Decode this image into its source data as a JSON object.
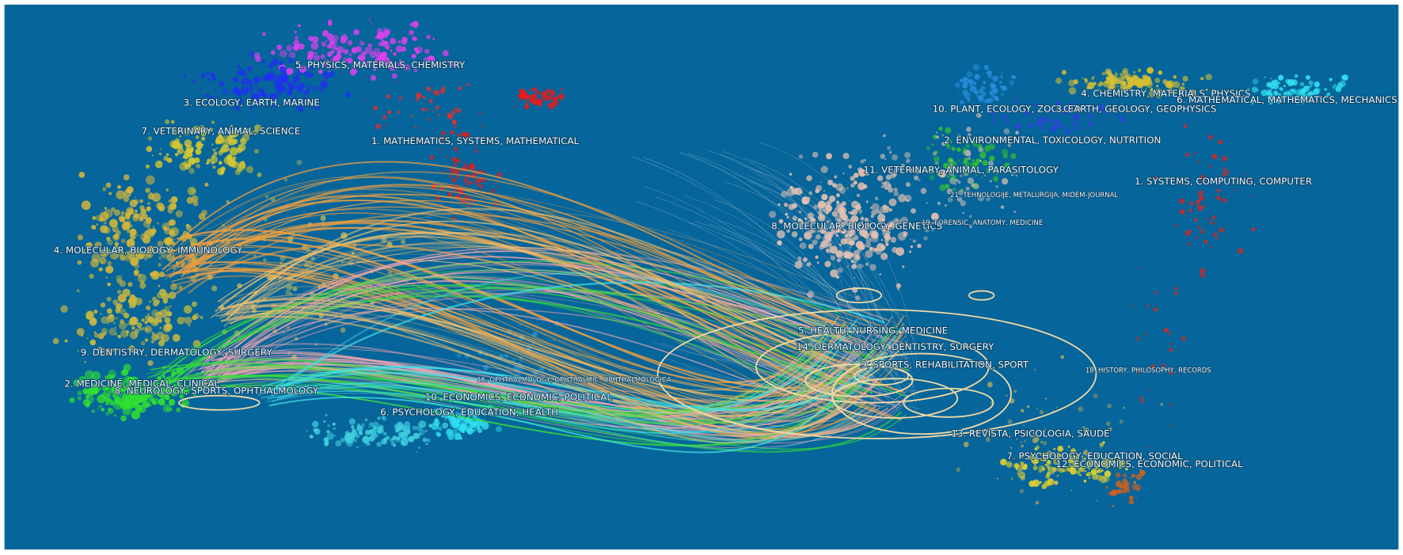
{
  "left_map": {
    "labels": [
      "5. PHYSICS, MATERIALS, CHEMISTRY",
      "3. ECOLOGY, EARTH, MARINE",
      "7. VETERINARY, ANIMAL, SCIENCE",
      "1. MATHEMATICS, SYSTEMS, MATHEMATICAL",
      "4. MOLECULAR, BIOLOGY, IMMUNOLOGY",
      "9. DENTISTRY, DERMATOLOGY, SURGERY",
      "2. MEDICINE, MEDICAL, CLINICAL",
      "8. NEUROLOGY, SPORTS, OPHTHALMOLOGY",
      "16. OPHTHALMOLOGY, OPHTHALMIC, OPHTHALMOLOGICA",
      "10. ECONOMICS, ECONOMIC, POLITICAL",
      "6. PSYCHOLOGY, EDUCATION, HEALTH"
    ]
  },
  "right_map": {
    "labels": [
      "4. CHEMISTRY, MATERIALS, PHYSICS",
      "6. MATHEMATICAL, MATHEMATICS, MECHANICS",
      "10. PLANT, ECOLOGY, ZOOLOGY",
      "3. EARTH, GEOLOGY, GEOPHYSICS",
      "2. ENVIRONMENTAL, TOXICOLOGY, NUTRITION",
      "11. VETERINARY, ANIMAL, PARASITOLOGY",
      "1. SYSTEMS, COMPUTING, COMPUTER",
      "21. TEHNOLOGIJE, METALURGIJA, MIDEM-JOURNAL",
      "8. MOLECULAR, BIOLOGY, GENETICS",
      "19. FORENSIC, ANATOMY, MEDICINE",
      "5. HEALTH, NURSING, MEDICINE",
      "14. DERMATOLOGY, DENTISTRY, SURGERY",
      "9. SPORTS, REHABILITATION, SPORT",
      "18. HISTORY, PHILOSOPHY, RECORDS",
      "13. REVISTA, PSICOLOGIA, SAUDE",
      "7. PSYCHOLOGY, EDUCATION, SOCIAL",
      "12. ECONOMICS, ECONOMIC, POLITICAL"
    ]
  }
}
